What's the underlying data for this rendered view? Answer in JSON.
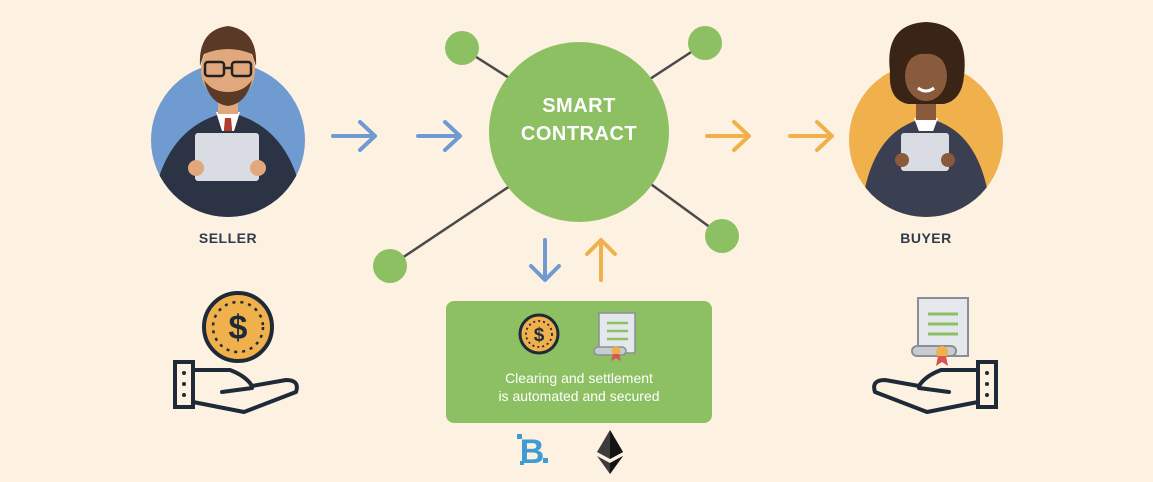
{
  "colors": {
    "background": "#fdf1e2",
    "green": "#8cc063",
    "blue_arrow": "#6f9bd1",
    "orange_arrow": "#f0b04c",
    "dark": "#2f3b4c",
    "seller_circle": "#6f9bd1",
    "buyer_circle": "#f0b04c"
  },
  "seller": {
    "label": "SELLER",
    "icon": "businessman-with-tablet"
  },
  "buyer": {
    "label": "BUYER",
    "icon": "businesswoman-with-tablet"
  },
  "smart_contract": {
    "line1": "SMART",
    "line2": "CONTRACT"
  },
  "settlement_box": {
    "line1": "Clearing and settlement",
    "line2": "is automated and secured",
    "icons": [
      "dollar-coin-icon",
      "certificate-scroll-icon"
    ]
  },
  "bottom_logos": [
    "blockchain-b-logo",
    "ethereum-logo"
  ],
  "hand_icons": {
    "left": "hand-holding-dollar-coin-icon",
    "right": "hand-holding-certificate-icon"
  }
}
